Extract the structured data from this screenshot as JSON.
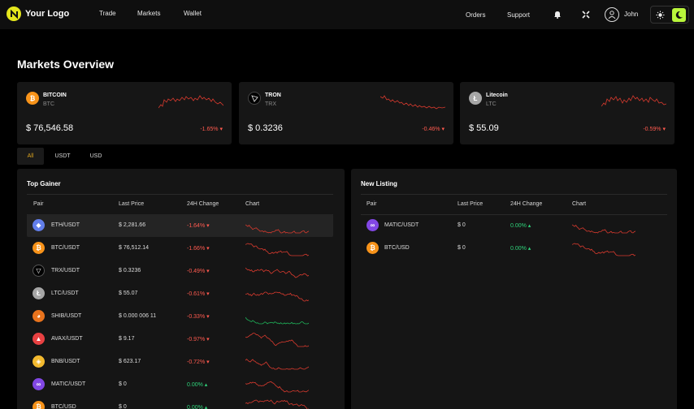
{
  "nav": {
    "logo_text": "Your Logo",
    "links": [
      "Trade",
      "Markets",
      "Wallet"
    ],
    "right_links": [
      "Orders",
      "Support"
    ],
    "user_name": "John",
    "icons": [
      "bell-icon",
      "apps-icon",
      "user-icon",
      "sun-icon",
      "moon-icon"
    ],
    "accent": "#b9f63b"
  },
  "page": {
    "title": "Markets Overview"
  },
  "tickers": [
    {
      "name": "BITCOIN",
      "symbol": "BTC",
      "price": "$ 76,546.58",
      "change": "-1.65%",
      "icon": "bitcoin-icon",
      "color": "#f7931a",
      "glyph": "₿"
    },
    {
      "name": "TRON",
      "symbol": "TRX",
      "price": "$ 0.3236",
      "change": "-0.46%",
      "icon": "tron-icon",
      "color": "#000000",
      "glyph": "▽"
    },
    {
      "name": "Litecoin",
      "symbol": "LTC",
      "price": "$ 55.09",
      "change": "-0.59%",
      "icon": "litecoin-icon",
      "color": "#a6a6a6",
      "glyph": "Ł"
    }
  ],
  "filters": {
    "tabs": [
      "All",
      "USDT",
      "USD"
    ],
    "active": "All"
  },
  "columns": [
    "Pair",
    "Last Price",
    "24H Change",
    "Chart"
  ],
  "top_gainer": {
    "title": "Top Gainer",
    "rows": [
      {
        "pair": "ETH/USDT",
        "price": "$ 2,281.66",
        "change": "-1.64%",
        "dir": "down",
        "icon": "ethereum-icon",
        "color": "#627eea",
        "glyph": "◆",
        "trend": "red"
      },
      {
        "pair": "BTC/USDT",
        "price": "$ 76,512.14",
        "change": "-1.66%",
        "dir": "down",
        "icon": "bitcoin-icon",
        "color": "#f7931a",
        "glyph": "₿",
        "trend": "red"
      },
      {
        "pair": "TRX/USDT",
        "price": "$ 0.3236",
        "change": "-0.49%",
        "dir": "down",
        "icon": "tron-icon",
        "color": "#000000",
        "glyph": "▽",
        "trend": "red"
      },
      {
        "pair": "LTC/USDT",
        "price": "$ 55.07",
        "change": "-0.61%",
        "dir": "down",
        "icon": "litecoin-icon",
        "color": "#a6a6a6",
        "glyph": "Ł",
        "trend": "red"
      },
      {
        "pair": "SHIB/USDT",
        "price": "$ 0.000 006 11",
        "change": "-0.33%",
        "dir": "down",
        "icon": "shiba-icon",
        "color": "#e8731d",
        "glyph": "◕",
        "trend": "green"
      },
      {
        "pair": "AVAX/USDT",
        "price": "$ 9.17",
        "change": "-0.97%",
        "dir": "down",
        "icon": "avalanche-icon",
        "color": "#e84142",
        "glyph": "▲",
        "trend": "red"
      },
      {
        "pair": "BNB/USDT",
        "price": "$ 623.17",
        "change": "-0.72%",
        "dir": "down",
        "icon": "bnb-icon",
        "color": "#f3ba2f",
        "glyph": "◈",
        "trend": "red"
      },
      {
        "pair": "MATIC/USDT",
        "price": "$ 0",
        "change": "0.00%",
        "dir": "up",
        "icon": "polygon-icon",
        "color": "#8247e5",
        "glyph": "∞",
        "trend": "red"
      },
      {
        "pair": "BTC/USD",
        "price": "$ 0",
        "change": "0.00%",
        "dir": "up",
        "icon": "bitcoin-icon",
        "color": "#f7931a",
        "glyph": "₿",
        "trend": "red"
      }
    ]
  },
  "new_listing": {
    "title": "New Listing",
    "rows": [
      {
        "pair": "MATIC/USDT",
        "price": "$ 0",
        "change": "0.00%",
        "dir": "up",
        "icon": "polygon-icon",
        "color": "#8247e5",
        "glyph": "∞",
        "trend": "red"
      },
      {
        "pair": "BTC/USD",
        "price": "$ 0",
        "change": "0.00%",
        "dir": "up",
        "icon": "bitcoin-icon",
        "color": "#f7931a",
        "glyph": "₿",
        "trend": "red"
      }
    ]
  },
  "colors": {
    "down": "#ff5a4f",
    "up": "#2fd37a",
    "active_tab": "#d9a21f"
  }
}
